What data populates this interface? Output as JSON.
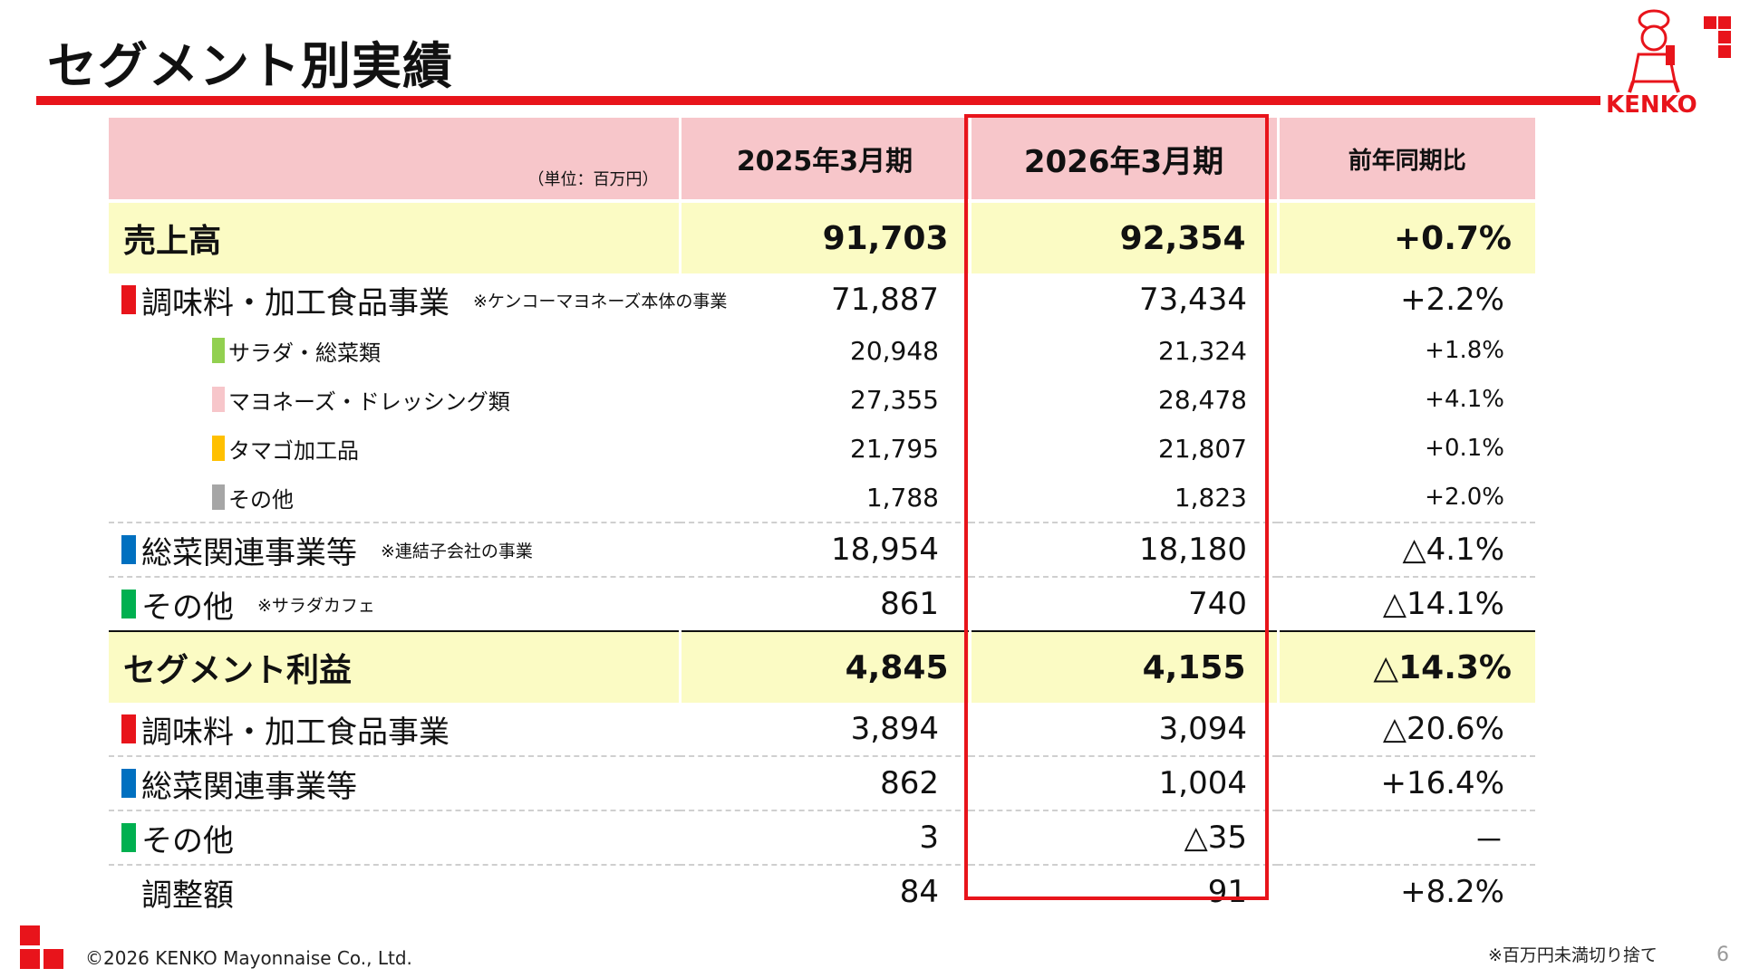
{
  "title": "セグメント別実績",
  "brand": "KENKO",
  "header": {
    "unit": "（単位：百万円）",
    "col_prev": "2025年3月期",
    "col_curr": "2026年3月期",
    "col_yoy": "前年同期比"
  },
  "sales": {
    "label": "売上高",
    "prev": "91,703",
    "curr": "92,354",
    "yoy": "+0.7%",
    "rows": [
      {
        "label": "調味料・加工食品事業",
        "note": "※ケンコーマヨネーズ本体の事業",
        "prev": "71,887",
        "curr": "73,434",
        "yoy": "+2.2%",
        "color": "#e8141b"
      },
      {
        "label": "サラダ・総菜類",
        "prev": "20,948",
        "curr": "21,324",
        "yoy": "+1.8%",
        "color": "#92d050"
      },
      {
        "label": "マヨネーズ・ドレッシング類",
        "prev": "27,355",
        "curr": "28,478",
        "yoy": "+4.1%",
        "color": "#f7c6ca"
      },
      {
        "label": "タマゴ加工品",
        "prev": "21,795",
        "curr": "21,807",
        "yoy": "+0.1%",
        "color": "#ffc000"
      },
      {
        "label": "その他",
        "prev": "1,788",
        "curr": "1,823",
        "yoy": "+2.0%",
        "color": "#a6a6a6"
      },
      {
        "label": "総菜関連事業等",
        "note": "※連結子会社の事業",
        "prev": "18,954",
        "curr": "18,180",
        "yoy": "△4.1%",
        "color": "#0070c0"
      },
      {
        "label": "その他",
        "note": "※サラダカフェ",
        "prev": "861",
        "curr": "740",
        "yoy": "△14.1%",
        "color": "#00b050"
      }
    ]
  },
  "profit": {
    "label": "セグメント利益",
    "prev": "4,845",
    "curr": "4,155",
    "yoy": "△14.3%",
    "rows": [
      {
        "label": "調味料・加工食品事業",
        "prev": "3,894",
        "curr": "3,094",
        "yoy": "△20.6%",
        "color": "#e8141b"
      },
      {
        "label": "総菜関連事業等",
        "prev": "862",
        "curr": "1,004",
        "yoy": "+16.4%",
        "color": "#0070c0"
      },
      {
        "label": "その他",
        "prev": "3",
        "curr": "△35",
        "yoy": "－",
        "color": "#00b050"
      },
      {
        "label": "調整額",
        "prev": "84",
        "curr": "91",
        "yoy": "+8.2%"
      }
    ]
  },
  "footer": {
    "copyright": "©2026 KENKO Mayonnaise Co., Ltd.",
    "note": "※百万円未満切り捨て",
    "page": "6"
  }
}
